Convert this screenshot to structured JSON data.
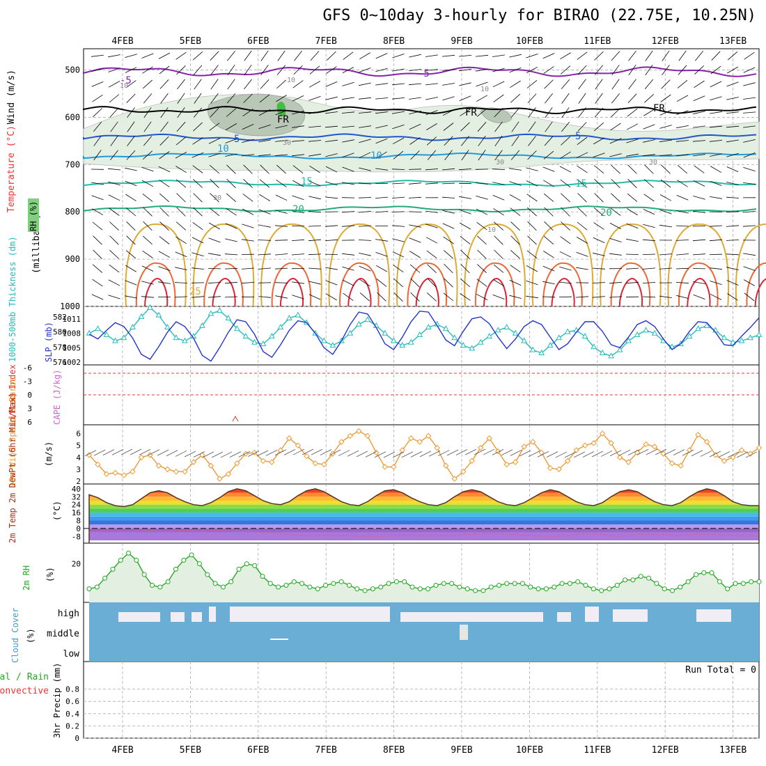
{
  "title": "GFS 0~10day 3-hourly for BIRAO (22.75E, 10.25N)",
  "date_labels": [
    "4FEB",
    "5FEB",
    "6FEB",
    "7FEB",
    "8FEB",
    "9FEB",
    "10FEB",
    "11FEB",
    "12FEB",
    "13FEB"
  ],
  "colors": {
    "axis": "#000000",
    "grid": "#999999",
    "wind_label": "#000000",
    "temp_label": "#ee3333",
    "rh_label": "#22aa22",
    "thick": "#22bbbb",
    "slp": "#2233cc",
    "li": "#ee3333",
    "cape": "#cc66cc",
    "wind10": "#ee9933",
    "rh2m": "#22aa22",
    "cloud": "#6aaed6",
    "precip": "#ee3333"
  },
  "panels": {
    "upper": {
      "ylabel_wind": "Wind (m/s)",
      "ylabel_temp": "Temperature (°C)",
      "ylabel_rh": "RH (%)",
      "ylabel_units": "(millibars)",
      "yticks": [
        "500",
        "600",
        "700",
        "800",
        "900",
        "1000"
      ],
      "temp_contour_labels": [
        "-5",
        "-5",
        "FR",
        "FR",
        "FR",
        "5",
        "5",
        "10",
        "10",
        "15",
        "15",
        "20",
        "20",
        "25"
      ],
      "rh_contour_labels": [
        "10",
        "10",
        "10",
        "30",
        "30",
        "30",
        "30",
        "10"
      ]
    },
    "slp": {
      "ylabel_thick": "1000-500mb Thickness (dm)",
      "ylabel_slp": "SLP (mb)",
      "thick_ticks": [
        "582",
        "580",
        "578",
        "576"
      ],
      "slp_ticks": [
        "1011",
        "1008",
        "1005",
        "1002"
      ]
    },
    "li": {
      "ylabel_li": "Lifted Index",
      "ylabel_cape": "CAPE (J/kg)",
      "yticks": [
        "-6",
        "-3",
        "0",
        "3",
        "6"
      ]
    },
    "wind10": {
      "ylabel": "10m Wind Speed & Barbs",
      "units": "(m/s)",
      "yticks": [
        "6",
        "5",
        "4",
        "3",
        "2"
      ]
    },
    "temp2m": {
      "ylabel": "2m Temp 2m DewPt (6hr Min/Max)",
      "units": "(°C)",
      "yticks": [
        "40",
        "32",
        "24",
        "16",
        "8",
        "0",
        "-8"
      ]
    },
    "rh2m": {
      "ylabel": "2m RH",
      "units": "(%)",
      "yticks": [
        "20"
      ]
    },
    "cloud": {
      "ylabel": "Cloud Cover",
      "units": "(%)",
      "levels": [
        "high",
        "middle",
        "low"
      ]
    },
    "precip": {
      "ylabel_total": "Total / Rain",
      "ylabel_conv": "Convective",
      "ylabel_units": "3hr Precip (mm)",
      "yticks": [
        "0.8",
        "0.6",
        "0.4",
        "0.2",
        "0"
      ],
      "run_total": "Run Total = 0"
    }
  },
  "chart_data": [
    {
      "type": "line",
      "panel": "slp",
      "x_unit": "3-hourly steps from 03 Feb 12Z",
      "series": [
        {
          "name": "SLP",
          "axis": "right",
          "values": [
            1007.8,
            1006.8,
            1008.6,
            1010.2,
            1009.4,
            1007,
            1003.6,
            1002.6,
            1005.2,
            1008.2,
            1010.4,
            1009.4,
            1007,
            1003.4,
            1002.2,
            1005,
            1008.2,
            1010.8,
            1010.4,
            1007.8,
            1004.2,
            1003,
            1005.6,
            1008.6,
            1010.6,
            1010.2,
            1008,
            1005,
            1003.6,
            1006.4,
            1009.8,
            1012.4,
            1012,
            1009.2,
            1005.8,
            1004.6,
            1007.2,
            1010.4,
            1012.6,
            1012.4,
            1009.6,
            1006.6,
            1005.4,
            1008.4,
            1011,
            1011.4,
            1010,
            1007.2,
            1004.8,
            1006.8,
            1009.4,
            1010.6,
            1009.8,
            1007.2,
            1004.6,
            1005.8,
            1008.2,
            1010.4,
            1010.4,
            1008.4,
            1005.6,
            1005,
            1007.2,
            1009.8,
            1010.6,
            1009.4,
            1006.8,
            1004.6,
            1005.8,
            1008.4,
            1010.4,
            1010.2,
            1008.2,
            1005.6,
            1005.4,
            1007.4,
            1009.2,
            1011.2
          ]
        },
        {
          "name": "1000-500mb Thickness",
          "axis": "left",
          "values": [
            579.8,
            580.4,
            579.6,
            578.8,
            579.2,
            580.6,
            582,
            583.2,
            582.2,
            580.6,
            579.2,
            578.8,
            579.4,
            580.8,
            582.4,
            582.8,
            581.8,
            580.4,
            579.4,
            578.6,
            578.4,
            579.4,
            580.6,
            581.8,
            582.2,
            581.2,
            579.8,
            578.8,
            578.2,
            578.8,
            579.8,
            581,
            581.6,
            580.8,
            579.8,
            578.8,
            578.2,
            578.6,
            579.6,
            580.6,
            581,
            580.4,
            579.2,
            578.2,
            577.8,
            578.6,
            579.4,
            580.2,
            580.6,
            579.8,
            578.8,
            577.6,
            577.2,
            578.2,
            579.2,
            580,
            580.2,
            579.4,
            578,
            577.2,
            576.8,
            577.6,
            578.8,
            579.6,
            580.2,
            579.8,
            578.8,
            578,
            578.4,
            579.4,
            580.4,
            580.8,
            580.2,
            579.2,
            578.6,
            578.8,
            579.2,
            579.6
          ]
        }
      ],
      "ylim_left": [
        576,
        583
      ],
      "ylim_right": [
        1002,
        1013
      ]
    },
    {
      "type": "line",
      "panel": "wind10",
      "series": [
        {
          "name": "10m Wind Speed",
          "values": [
            4.2,
            3.4,
            2.6,
            2.7,
            2.5,
            2.8,
            4,
            4.2,
            3.3,
            3,
            2.8,
            2.8,
            3.6,
            4.2,
            3.3,
            2.2,
            2.6,
            3.5,
            4.3,
            4.4,
            3.7,
            3.6,
            4.6,
            5.6,
            5,
            4.1,
            3.5,
            3.4,
            4.3,
            5.3,
            5.8,
            6.2,
            5.8,
            4.4,
            3.2,
            3.2,
            4.6,
            5.6,
            5.3,
            5.8,
            4.8,
            3.3,
            2.2,
            2.8,
            3.7,
            4.8,
            5.6,
            4.5,
            3.4,
            3.6,
            4.9,
            5.3,
            4.4,
            3.1,
            3,
            3.7,
            4.6,
            5,
            5.2,
            6,
            5.2,
            4,
            3.6,
            4.4,
            5.1,
            4.9,
            4.3,
            3.5,
            3.3,
            4.6,
            5.9,
            5.3,
            4.2,
            3.7,
            4,
            4.6,
            4.3,
            4.8
          ]
        }
      ],
      "ylim": [
        2,
        6.5
      ]
    },
    {
      "type": "line",
      "panel": "rh2m",
      "series": [
        {
          "name": "2m RH",
          "values": [
            6,
            7,
            12,
            17,
            22,
            26,
            22,
            14,
            8,
            7,
            10,
            17,
            22,
            25,
            20,
            14,
            9,
            7,
            10,
            17,
            20,
            19,
            13,
            9,
            7,
            8,
            10,
            9,
            7,
            6,
            8,
            9,
            10,
            8,
            6,
            5,
            6,
            7,
            9,
            10,
            10,
            7,
            6,
            6,
            8,
            9,
            9,
            7,
            6,
            5,
            5,
            7,
            8,
            9,
            9,
            9,
            7,
            6,
            6,
            7,
            9,
            9,
            10,
            8,
            6,
            5,
            6,
            8,
            11,
            11,
            13,
            12,
            9,
            6,
            5,
            7,
            10,
            14,
            15,
            15,
            10,
            6,
            9,
            9,
            10,
            10
          ]
        }
      ],
      "ylim": [
        0,
        30
      ]
    },
    {
      "type": "line",
      "panel": "temp2m",
      "series": [
        {
          "name": "2m Temp",
          "values": [
            34,
            31,
            26,
            23,
            22,
            24,
            30,
            36,
            38,
            36,
            31,
            27,
            24,
            23,
            26,
            31,
            37,
            40,
            38,
            33,
            28,
            25,
            24,
            27,
            33,
            38,
            40,
            37,
            32,
            27,
            24,
            23,
            27,
            33,
            38,
            39,
            36,
            31,
            27,
            24,
            23,
            26,
            32,
            37,
            39,
            37,
            32,
            27,
            24,
            23,
            26,
            31,
            36,
            39,
            37,
            32,
            27,
            24,
            23,
            26,
            32,
            37,
            39,
            37,
            32,
            27,
            24,
            23,
            26,
            32,
            37,
            40,
            38,
            33,
            27,
            24,
            23,
            23
          ]
        },
        {
          "name": "2m DewPt",
          "values": [
            -4,
            -3,
            -2,
            -2,
            -3,
            -3,
            -2,
            -2,
            -3,
            -3,
            -2,
            -2,
            -2,
            -3,
            -2,
            -2,
            -2,
            -3,
            -3,
            -3,
            -4,
            -4,
            -5,
            -6,
            -7,
            -7,
            -7,
            -7,
            -7,
            -7,
            -7,
            -8,
            -8,
            -8,
            -8,
            -7,
            -7,
            -7,
            -7,
            -7,
            -7,
            -7,
            -7,
            -6,
            -6,
            -5,
            -5,
            -5,
            -6,
            -6,
            -7,
            -7,
            -8,
            -8,
            -8,
            -7,
            -6,
            -5,
            -5,
            -6,
            -7,
            -8,
            -7,
            -6,
            -6,
            -6,
            -6,
            -7,
            -7,
            -6,
            -6,
            -6,
            -6,
            -7,
            -7,
            -7,
            -7,
            -8
          ]
        }
      ],
      "ylim": [
        -12,
        42
      ]
    },
    {
      "type": "bar",
      "panel": "precip",
      "series": [
        {
          "name": "3hr Precip",
          "values": []
        }
      ],
      "ylim": [
        0,
        1
      ]
    }
  ]
}
